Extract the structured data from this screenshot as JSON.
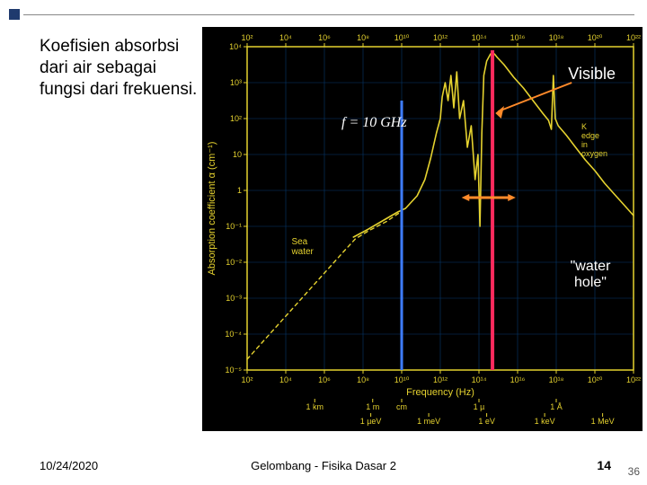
{
  "caption": "Koefisien absorbsi dari air sebagai fungsi dari frekuensi.",
  "date": "10/24/2020",
  "footer_center": "Gelombang - Fisika Dasar 2",
  "page_num_bold": "14",
  "page_num_small": "36",
  "chart": {
    "type": "line",
    "background": "#000000",
    "plot_border_color": "#e5d22f",
    "grid_color": "#063a6e",
    "seawater_curve_color": "#e5d22f",
    "seawater_dash": "4,4",
    "purewater_curve_color": "#e5d22f",
    "overlay_freq_line_color": "#3e7cff",
    "overlay_visible_line_color": "#ff2a5d",
    "overlay_arrow_color": "#ff8a2a",
    "axis_text_color": "#e5d22f",
    "overlay_text_color": "#ffffff",
    "x_axis_top": {
      "ticks": [
        "10²",
        "10⁴",
        "10⁶",
        "10⁸",
        "10¹⁰",
        "10¹²",
        "10¹⁴",
        "10¹⁶",
        "10¹⁸",
        "10²⁰",
        "10²²"
      ],
      "fontsize": 9
    },
    "x_axis_bottom": {
      "label": "Frequency (Hz)",
      "ticks": [
        "10²",
        "10⁴",
        "10⁶",
        "10⁸",
        "10¹⁰",
        "10¹²",
        "10¹⁴",
        "10¹⁶",
        "10¹⁸",
        "10²⁰",
        "10²²"
      ],
      "fontsize": 9,
      "label_fontsize": 11
    },
    "wavelength_row": {
      "items": [
        "1 km",
        "1 m",
        "cm",
        "1 µ",
        "1 Å"
      ],
      "fontsize": 9
    },
    "energy_row": {
      "items": [
        "1 µeV",
        "1 meV",
        "1 eV",
        "1 keV",
        "1 MeV"
      ],
      "fontsize": 9
    },
    "y_axis": {
      "label": "Absorption coefficient α (cm⁻¹)",
      "ticks": [
        "10⁻⁵",
        "10⁻⁴",
        "10⁻³",
        "10⁻²",
        "10⁻¹",
        "1",
        "10",
        "10²",
        "10³",
        "10⁴"
      ],
      "fontsize": 9,
      "label_fontsize": 11
    },
    "inline_labels": {
      "sea_water": "Sea\nwater",
      "k_edge": "K\nedge\nin\noxygen",
      "visible": "Visible",
      "freq_marker": "f = 10 GHz",
      "water_hole": "\"water\nhole\""
    },
    "xlim_log10": [
      2,
      22
    ],
    "ylim_log10": [
      -5,
      4
    ],
    "curves": {
      "purewater_points_logxy": [
        [
          7.5,
          -1.3
        ],
        [
          8.2,
          -1.1
        ],
        [
          9.0,
          -0.85
        ],
        [
          9.8,
          -0.6
        ],
        [
          10.2,
          -0.5
        ],
        [
          10.8,
          -0.15
        ],
        [
          11.2,
          0.3
        ],
        [
          11.5,
          0.9
        ],
        [
          11.8,
          1.6
        ],
        [
          12.0,
          2.0
        ],
        [
          12.1,
          2.6
        ],
        [
          12.25,
          3.0
        ],
        [
          12.4,
          2.5
        ],
        [
          12.55,
          3.2
        ],
        [
          12.7,
          2.3
        ],
        [
          12.85,
          3.3
        ],
        [
          13.0,
          2.0
        ],
        [
          13.2,
          2.5
        ],
        [
          13.4,
          1.2
        ],
        [
          13.6,
          1.8
        ],
        [
          13.8,
          0.3
        ],
        [
          13.95,
          1.0
        ],
        [
          14.05,
          -1.0
        ],
        [
          14.15,
          1.6
        ],
        [
          14.25,
          3.2
        ],
        [
          14.4,
          3.6
        ],
        [
          14.6,
          3.8
        ],
        [
          14.8,
          3.8
        ],
        [
          14.95,
          3.7
        ],
        [
          15.3,
          3.5
        ],
        [
          15.8,
          3.15
        ],
        [
          16.3,
          2.85
        ],
        [
          16.8,
          2.5
        ],
        [
          17.3,
          2.15
        ],
        [
          17.6,
          1.95
        ],
        [
          17.75,
          1.7
        ],
        [
          17.85,
          3.2
        ],
        [
          17.95,
          2.0
        ],
        [
          18.1,
          1.8
        ],
        [
          18.5,
          1.55
        ],
        [
          19.0,
          1.2
        ],
        [
          19.5,
          0.85
        ],
        [
          20.0,
          0.55
        ],
        [
          20.5,
          0.2
        ],
        [
          21.0,
          -0.1
        ],
        [
          21.5,
          -0.4
        ],
        [
          22.0,
          -0.7
        ]
      ],
      "seawater_points_logxy": [
        [
          2.0,
          -4.7
        ],
        [
          3.0,
          -4.1
        ],
        [
          4.0,
          -3.5
        ],
        [
          5.0,
          -2.9
        ],
        [
          6.0,
          -2.3
        ],
        [
          7.0,
          -1.7
        ],
        [
          7.6,
          -1.35
        ],
        [
          8.3,
          -1.12
        ],
        [
          9.2,
          -0.87
        ],
        [
          10.0,
          -0.58
        ]
      ]
    }
  }
}
